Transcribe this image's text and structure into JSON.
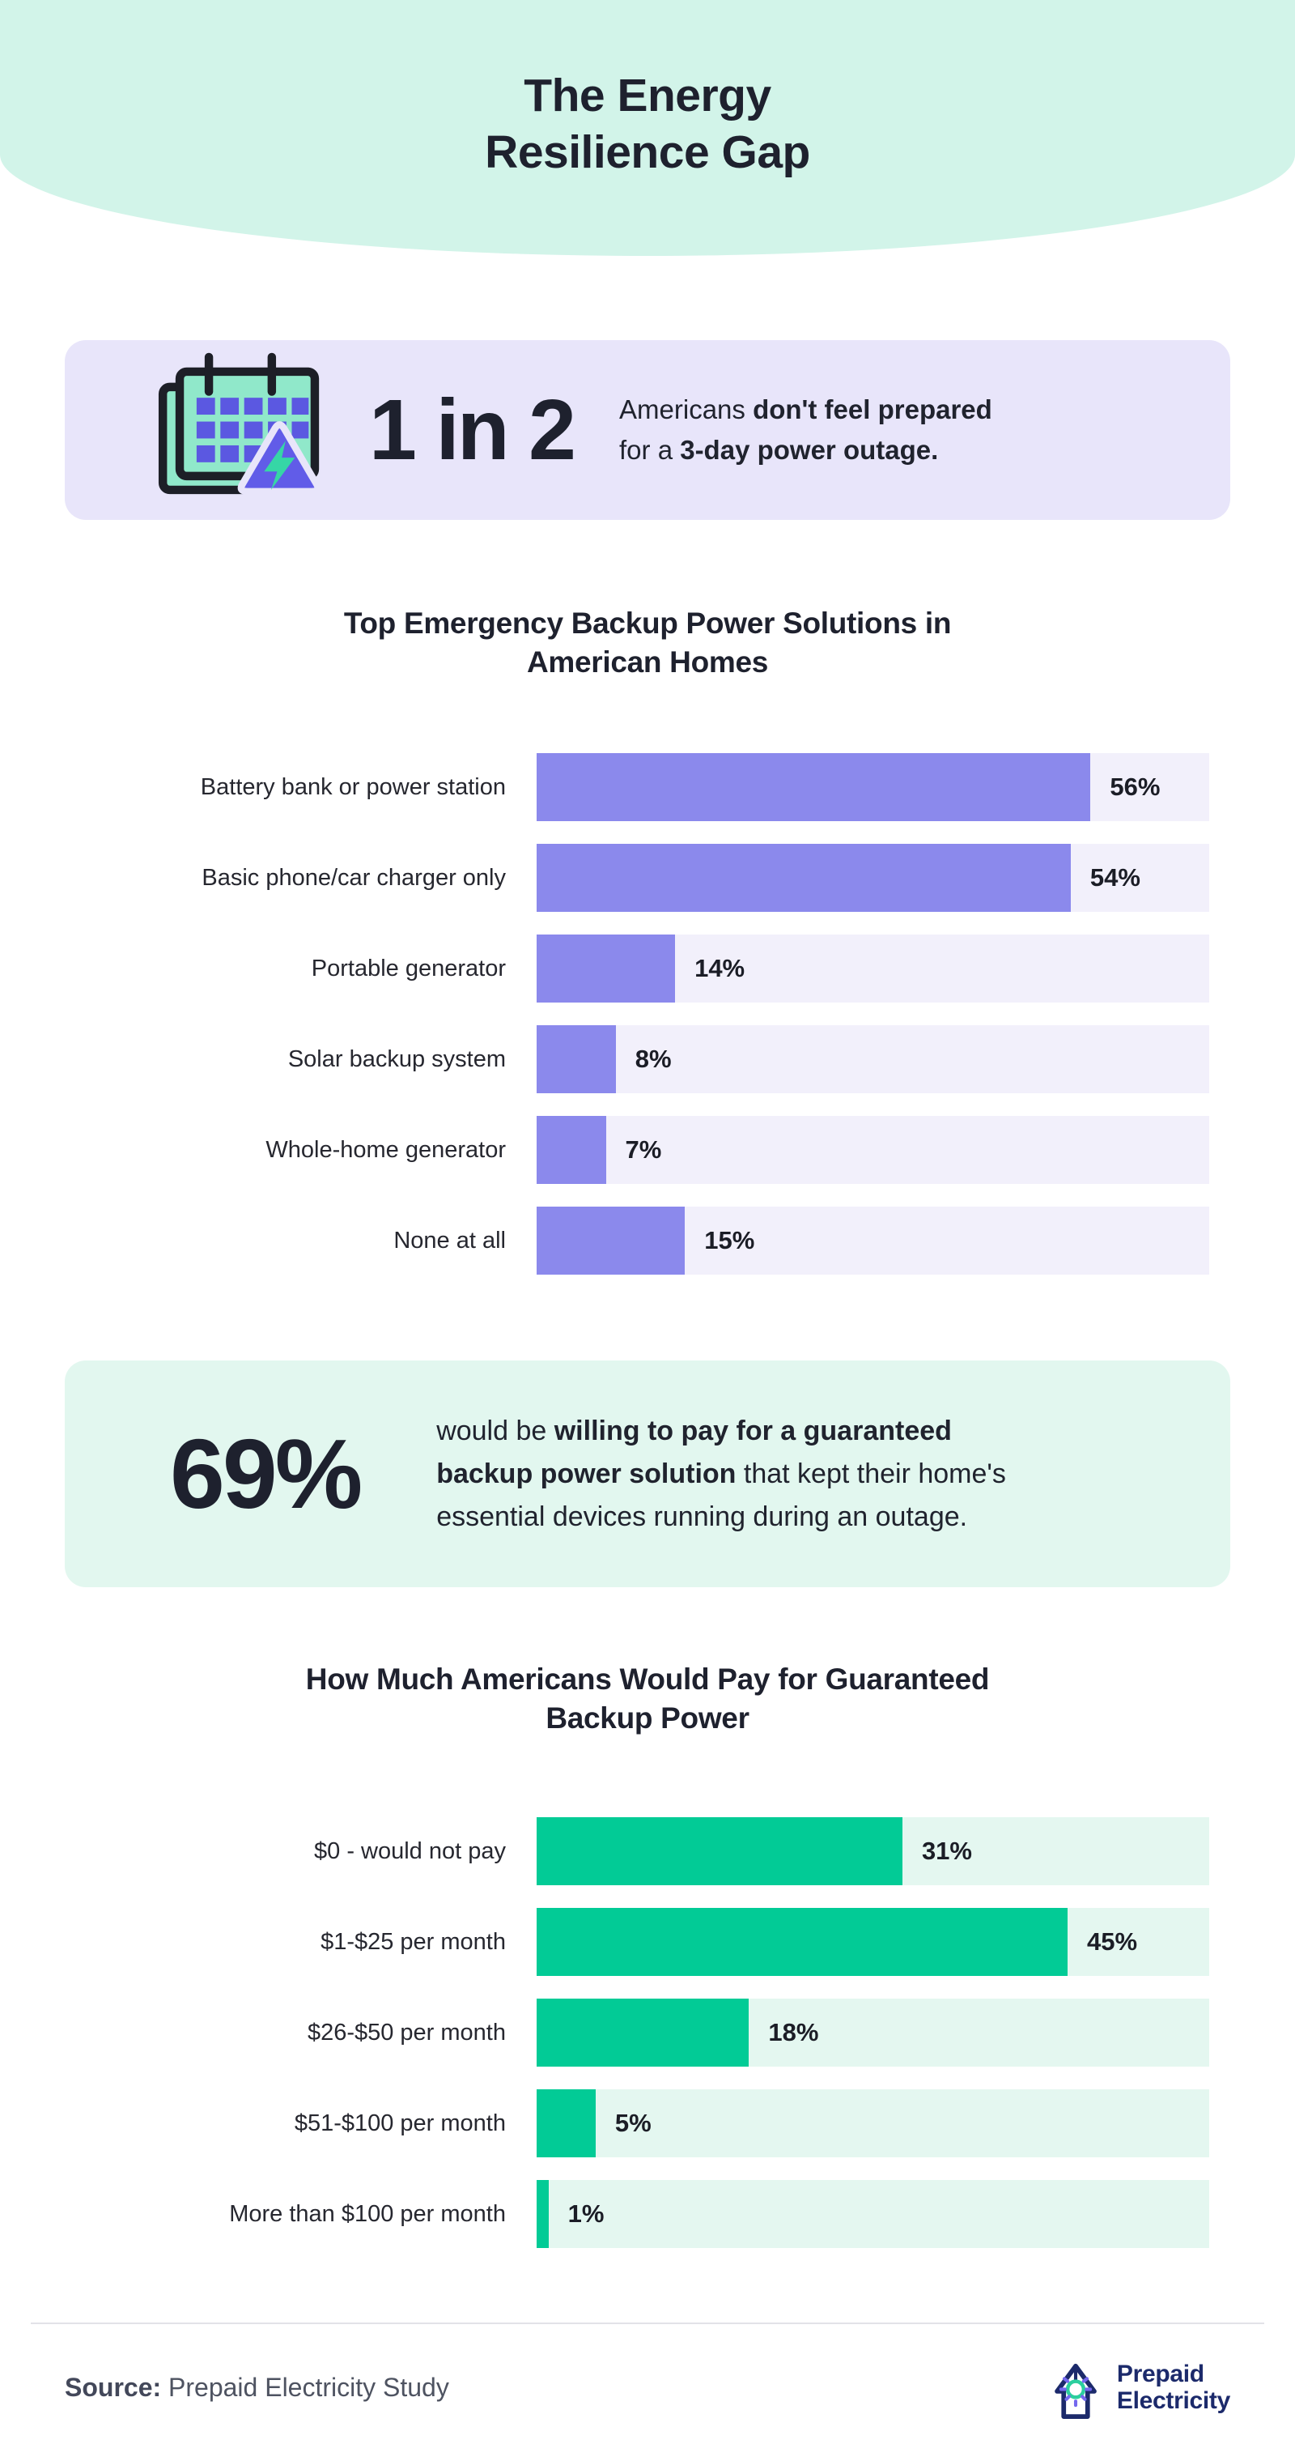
{
  "page": {
    "title_lines": [
      "The Energy",
      "Resilience Gap"
    ]
  },
  "colors": {
    "hero_bg": "#D2F4E9",
    "lavender_card_bg": "#E8E5FA",
    "mint_card_bg": "#E2F7EF",
    "purple_bar": "#8B89EC",
    "purple_track": "#F2F0FB",
    "green_bar": "#02CB96",
    "green_track": "#E4F7F0",
    "heading_text": "#1E212E",
    "source_text": "#4E5361",
    "divider": "#E2E2E8",
    "logo_navy": "#1C2A6B",
    "logo_bulb_green": "#2BCF9E",
    "logo_ray_purple": "#7468EE",
    "icon_calendar_mint": "#90E8CA",
    "icon_grid_purple": "#5B58E1",
    "icon_triangle_purple": "#615CE8",
    "icon_bolt_mint": "#36D6A6",
    "icon_outline_dark": "#1D1F27"
  },
  "stat1": {
    "icon": "calendar-outage-icon",
    "number": "1 in 2",
    "lines": [
      [
        {
          "text": "Americans ",
          "bold": false
        },
        {
          "text": "don't feel prepared",
          "bold": true
        }
      ],
      [
        {
          "text": "for a ",
          "bold": false
        },
        {
          "text": "3-day power outage.",
          "bold": true
        }
      ]
    ]
  },
  "stat2": {
    "number": "69%",
    "lines": [
      [
        {
          "text": "would be ",
          "bold": false
        },
        {
          "text": "willing to pay for a guaranteed",
          "bold": true
        }
      ],
      [
        {
          "text": "backup power solution",
          "bold": true
        },
        {
          "text": " that kept their home's",
          "bold": false
        }
      ],
      [
        {
          "text": "essential devices running during an outage.",
          "bold": false
        }
      ]
    ]
  },
  "chart_data": [
    {
      "type": "bar",
      "orientation": "horizontal",
      "title": "Top Emergency Backup Power Solutions in American Homes",
      "title_lines": [
        "Top Emergency Backup Power Solutions in",
        "American Homes"
      ],
      "categories": [
        "Battery bank or power station",
        "Basic phone/car charger only",
        "Portable generator",
        "Solar backup system",
        "Whole-home generator",
        "None at all"
      ],
      "values": [
        56,
        54,
        14,
        8,
        7,
        15
      ],
      "unit": "%",
      "xlim": [
        0,
        68
      ],
      "grid": false,
      "legend": "none",
      "value_label_position": "right-of-bar",
      "bar_color": "#8B89EC",
      "track_color": "#F2F0FB"
    },
    {
      "type": "bar",
      "orientation": "horizontal",
      "title": "How Much Americans Would Pay for Guaranteed Backup Power",
      "title_lines": [
        "How Much Americans Would Pay for Guaranteed",
        "Backup Power"
      ],
      "categories": [
        "$0 - would not pay",
        "$1-$25 per month",
        "$26-$50 per month",
        "$51-$100 per month",
        "More than $100 per month"
      ],
      "values": [
        31,
        45,
        18,
        5,
        1
      ],
      "unit": "%",
      "xlim": [
        0,
        57
      ],
      "grid": false,
      "legend": "none",
      "value_label_position": "right-of-bar",
      "bar_color": "#02CB96",
      "track_color": "#E4F7F0"
    }
  ],
  "footer": {
    "source_label": "Source:",
    "source_text": "Prepaid Electricity Study",
    "logo_lines": [
      "Prepaid",
      "Electricity"
    ]
  }
}
